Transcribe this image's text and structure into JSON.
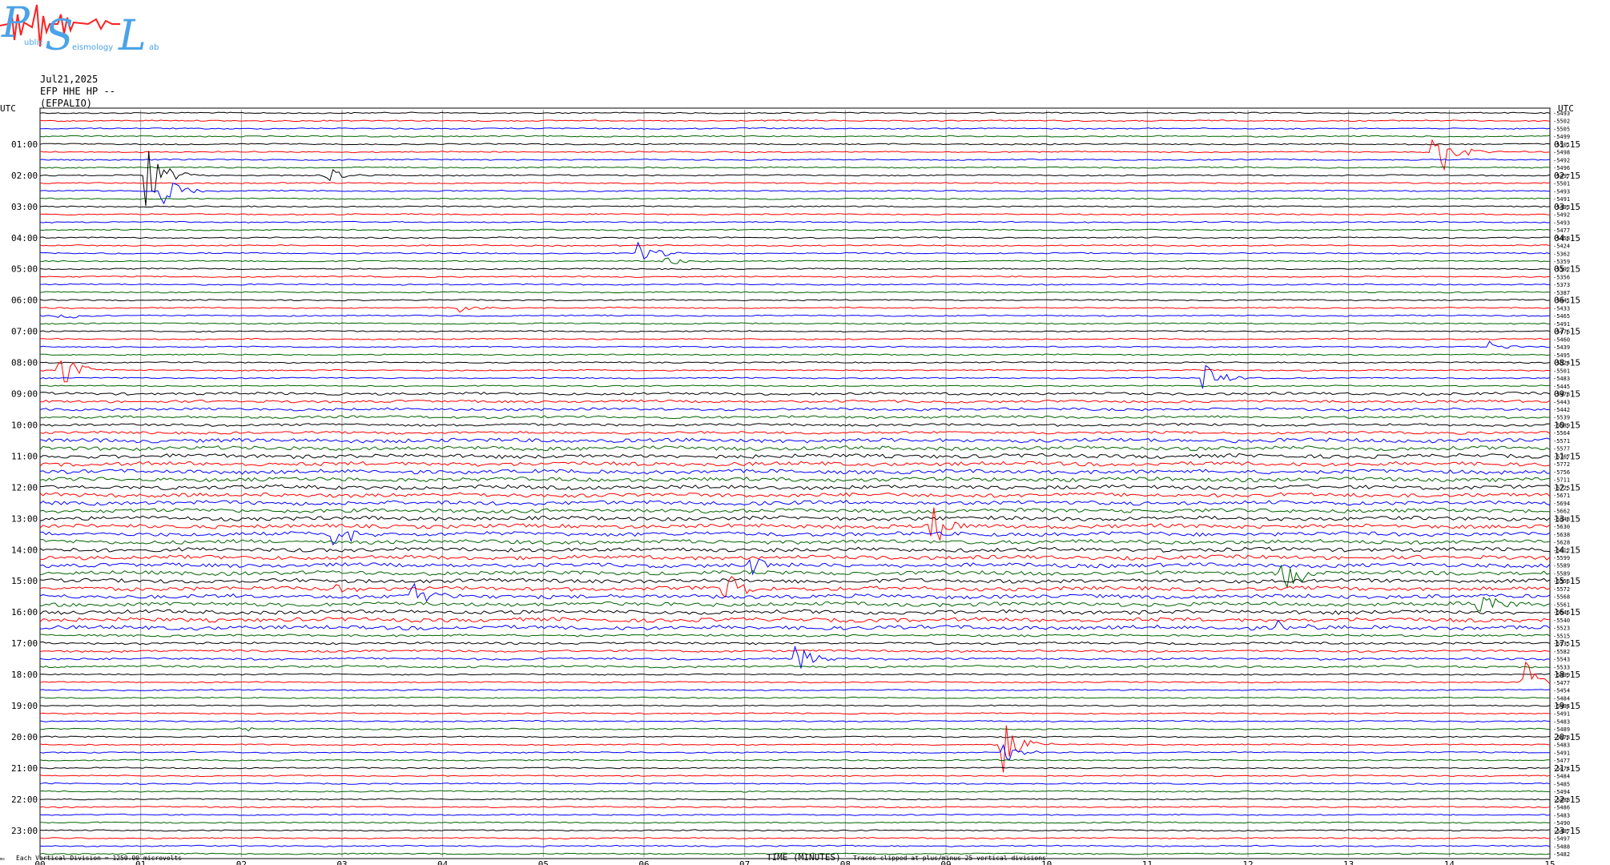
{
  "logo": {
    "text_left": "P",
    "text_mid": "S",
    "text_right": "L",
    "sub1": "ublic",
    "sub2": "eismology",
    "sub3": "ab",
    "blue": "#4aa3e8",
    "red": "#ff2020"
  },
  "header": {
    "date": "Jul21,2025",
    "station": "EFP HHE HP --",
    "station_code": "(EFPALIO)"
  },
  "chart_data": {
    "type": "line",
    "title": "",
    "left_axis_title": "UTC",
    "right_axis_title": "UTC",
    "left_labels": [
      "01:00",
      "02:00",
      "03:00",
      "04:00",
      "05:00",
      "06:00",
      "07:00",
      "08:00",
      "09:00",
      "10:00",
      "11:00",
      "12:00",
      "13:00",
      "14:00",
      "15:00",
      "16:00",
      "17:00",
      "18:00",
      "19:00",
      "20:00",
      "21:00",
      "22:00",
      "23:00"
    ],
    "right_labels": [
      "01:15",
      "02:15",
      "03:15",
      "04:15",
      "05:15",
      "06:15",
      "07:15",
      "08:15",
      "09:15",
      "10:15",
      "11:15",
      "12:15",
      "13:15",
      "14:15",
      "15:15",
      "16:15",
      "17:15",
      "18:15",
      "19:15",
      "20:15",
      "21:15",
      "22:15",
      "23:15"
    ],
    "x_ticks": [
      "00",
      "01",
      "02",
      "03",
      "04",
      "05",
      "06",
      "07",
      "08",
      "09",
      "10",
      "11",
      "12",
      "13",
      "14",
      "15"
    ],
    "xlabel": "TIME (MINUTES)",
    "xlim": [
      0,
      15
    ],
    "trace_minutes": 15,
    "traces_per_hour": 4,
    "trace_colors": [
      "#000000",
      "#ff0000",
      "#0000ff",
      "#006400"
    ],
    "trace_levels": [
      -5493,
      -5502,
      -5505,
      -5499,
      -5501,
      -5498,
      -5492,
      -5496,
      -5497,
      -5501,
      -5493,
      -5491,
      -5493,
      -5492,
      -5493,
      -5477,
      -5458,
      -5424,
      -5362,
      -5359,
      -5392,
      -5356,
      -5373,
      -5387,
      -5441,
      -5433,
      -5465,
      -5491,
      -5476,
      -5460,
      -5439,
      -5495,
      -5524,
      -5501,
      -5483,
      -5445,
      -5478,
      -5443,
      -5442,
      -5539,
      -5589,
      -5564,
      -5571,
      -5577,
      -5767,
      -5772,
      -5756,
      -5711,
      -5725,
      -5671,
      -5694,
      -5662,
      -5648,
      -5630,
      -5638,
      -5628,
      -5612,
      -5599,
      -5589,
      -5589,
      -5556,
      -5572,
      -5568,
      -5561,
      -5546,
      -5540,
      -5523,
      -5515,
      -5535,
      -5582,
      -5543,
      -5533,
      -5499,
      -5477,
      -5454,
      -5484,
      -5494,
      -5491,
      -5483,
      -5489,
      -5478,
      -5483,
      -5491,
      -5477,
      -5474,
      -5484,
      -5485,
      -5494,
      -5488,
      -5486,
      -5483,
      -5490,
      -5487,
      -5497,
      -5488,
      -5482
    ],
    "events": [
      {
        "trace": 5,
        "minute": 13.85,
        "amplitude": 3.0
      },
      {
        "trace": 8,
        "minute": 1.05,
        "amplitude": 3.0
      },
      {
        "trace": 8,
        "minute": 2.8,
        "amplitude": 1.0
      },
      {
        "trace": 10,
        "minute": 1.2,
        "amplitude": 1.6
      },
      {
        "trace": 18,
        "minute": 5.95,
        "amplitude": 1.4
      },
      {
        "trace": 19,
        "minute": 6.2,
        "amplitude": 0.6
      },
      {
        "trace": 25,
        "minute": 4.1,
        "amplitude": 0.7
      },
      {
        "trace": 26,
        "minute": 0.2,
        "amplitude": 0.5
      },
      {
        "trace": 33,
        "minute": 0.2,
        "amplitude": 2.2
      },
      {
        "trace": 34,
        "minute": 11.55,
        "amplitude": 2.0
      },
      {
        "trace": 30,
        "minute": 14.4,
        "amplitude": 0.5
      },
      {
        "trace": 54,
        "minute": 2.9,
        "amplitude": 1.6
      },
      {
        "trace": 53,
        "minute": 8.85,
        "amplitude": 2.0
      },
      {
        "trace": 59,
        "minute": 12.35,
        "amplitude": 2.2
      },
      {
        "trace": 58,
        "minute": 7.05,
        "amplitude": 1.0
      },
      {
        "trace": 61,
        "minute": 6.8,
        "amplitude": 1.5
      },
      {
        "trace": 61,
        "minute": 2.95,
        "amplitude": 0.6
      },
      {
        "trace": 62,
        "minute": 3.7,
        "amplitude": 1.8
      },
      {
        "trace": 63,
        "minute": 14.3,
        "amplitude": 2.0
      },
      {
        "trace": 66,
        "minute": 12.3,
        "amplitude": 1.0
      },
      {
        "trace": 70,
        "minute": 7.5,
        "amplitude": 1.4
      },
      {
        "trace": 73,
        "minute": 14.75,
        "amplitude": 2.2
      },
      {
        "trace": 79,
        "minute": 1.95,
        "amplitude": 0.4
      },
      {
        "trace": 81,
        "minute": 9.55,
        "amplitude": 2.6
      },
      {
        "trace": 82,
        "minute": 9.58,
        "amplitude": 1.0
      }
    ]
  },
  "footer": {
    "left_note": "Each Vertical Division = 1250.00 microvolts",
    "right_note": "Traces clipped at plus/minus 25 vertical divisions",
    "corner_mark": "ms"
  }
}
